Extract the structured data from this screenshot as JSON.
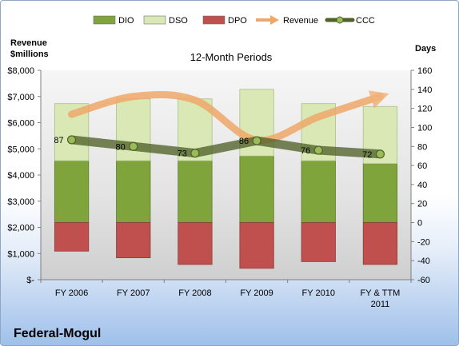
{
  "chart_data": {
    "type": "bar",
    "title": "12-Month Periods",
    "company": "Federal-Mogul",
    "ylabel_left": [
      "Revenue",
      "$millions"
    ],
    "ylabel_right": "Days",
    "categories": [
      [
        "FY 2006"
      ],
      [
        "FY 2007"
      ],
      [
        "FY 2008"
      ],
      [
        "FY 2009"
      ],
      [
        "FY 2010"
      ],
      [
        "FY & TTM",
        "2011"
      ]
    ],
    "left_axis": {
      "min": 0,
      "max": 8000,
      "step": 1000,
      "ticks": [
        "$-",
        "$1,000",
        "$2,000",
        "$3,000",
        "$4,000",
        "$5,000",
        "$6,000",
        "$7,000",
        "$8,000"
      ]
    },
    "right_axis": {
      "min": -60,
      "max": 160,
      "step": 20,
      "ticks": [
        "-60",
        "-40",
        "-20",
        "0",
        "20",
        "40",
        "60",
        "80",
        "100",
        "120",
        "140",
        "160"
      ]
    },
    "series": [
      {
        "name": "DIO",
        "kind": "bar",
        "axis": "days",
        "from": 0,
        "values": [
          65,
          65,
          65,
          70,
          65,
          62
        ],
        "color": "#7fa43c"
      },
      {
        "name": "DSO",
        "kind": "bar",
        "axis": "days",
        "from": "DIO",
        "values": [
          60,
          65,
          65,
          70,
          60,
          60
        ],
        "color": "#d9e8b5"
      },
      {
        "name": "DPO",
        "kind": "bar",
        "axis": "days",
        "from": 0,
        "values": [
          -30,
          -37,
          -44,
          -48,
          -41,
          -44
        ],
        "color": "#c0504d"
      },
      {
        "name": "Revenue",
        "kind": "line",
        "axis": "money",
        "values": [
          6320,
          7000,
          6860,
          5330,
          6220,
          7000
        ],
        "color": "#f0a869"
      },
      {
        "name": "CCC",
        "kind": "line",
        "axis": "days",
        "values": [
          87,
          80,
          73,
          86,
          76,
          72
        ],
        "color": "#4f6228"
      }
    ],
    "data_labels": [
      "87",
      "80",
      "73",
      "86",
      "76",
      "72"
    ],
    "legend": "top",
    "grid": false
  }
}
